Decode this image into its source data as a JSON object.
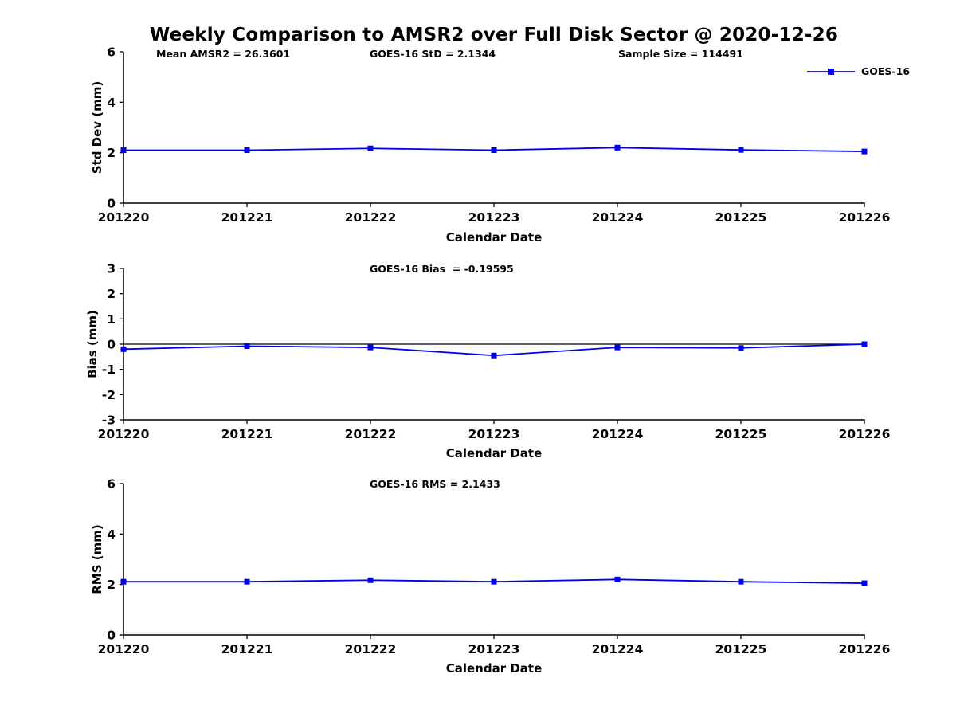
{
  "title": "Weekly Comparison to AMSR2 over Full Disk Sector @ 2020-12-26",
  "legend": {
    "label": "GOES-16",
    "color": "#0000EE"
  },
  "colors": {
    "series": "#0000EE",
    "axis": "#000000",
    "zero_line": "#000000"
  },
  "chart_data": [
    {
      "type": "line",
      "annotations": [
        "Mean AMSR2 = 26.3601",
        "GOES-16 StD = 2.1344",
        "Sample Size = 114491"
      ],
      "categories": [
        "201220",
        "201221",
        "201222",
        "201223",
        "201224",
        "201225",
        "201226"
      ],
      "series": [
        {
          "name": "GOES-16",
          "color": "#0000EE",
          "values": [
            2.1,
            2.1,
            2.17,
            2.1,
            2.2,
            2.11,
            2.05
          ]
        }
      ],
      "xlabel": "Calendar Date",
      "ylabel": "Std Dev (mm)",
      "ylim": [
        0,
        6
      ],
      "y_ticks": [
        0,
        2,
        4,
        6
      ],
      "zero_line": false,
      "grid": false,
      "legend_position": "top-right"
    },
    {
      "type": "line",
      "annotations": [
        "GOES-16 Bias  = -0.19595"
      ],
      "categories": [
        "201220",
        "201221",
        "201222",
        "201223",
        "201224",
        "201225",
        "201226"
      ],
      "series": [
        {
          "name": "GOES-16",
          "color": "#0000EE",
          "values": [
            -0.2,
            -0.08,
            -0.13,
            -0.45,
            -0.13,
            -0.15,
            0.0
          ]
        }
      ],
      "xlabel": "Calendar Date",
      "ylabel": "Bias (mm)",
      "ylim": [
        -3,
        3
      ],
      "y_ticks": [
        -3,
        -2,
        -1,
        0,
        1,
        2,
        3
      ],
      "zero_line": true,
      "grid": false
    },
    {
      "type": "line",
      "annotations": [
        "GOES-16 RMS = 2.1433"
      ],
      "categories": [
        "201220",
        "201221",
        "201222",
        "201223",
        "201224",
        "201225",
        "201226"
      ],
      "series": [
        {
          "name": "GOES-16",
          "color": "#0000EE",
          "values": [
            2.11,
            2.11,
            2.17,
            2.11,
            2.2,
            2.11,
            2.05
          ]
        }
      ],
      "xlabel": "Calendar Date",
      "ylabel": "RMS (mm)",
      "ylim": [
        0,
        6
      ],
      "y_ticks": [
        0,
        2,
        4,
        6
      ],
      "zero_line": false,
      "grid": false
    }
  ]
}
